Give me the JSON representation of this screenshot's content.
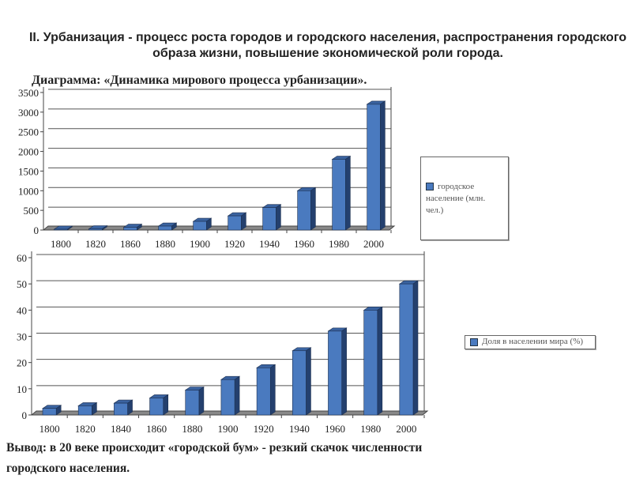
{
  "header": {
    "title": "II. Урбанизация - процесс роста городов и городского населения, распространения городского образа жизни, повышение экономической роли города.",
    "subtitle": "Диаграмма: «Динамика мирового процесса урбанизации»."
  },
  "conclusion": {
    "line1": "Вывод: в 20 веке происходит «городской бум» - резкий скачок численности",
    "line2": "городского населения."
  },
  "chart_data": [
    {
      "type": "bar",
      "title": "",
      "categories": [
        "1800",
        "1820",
        "1860",
        "1880",
        "1900",
        "1920",
        "1940",
        "1960",
        "1980",
        "2000"
      ],
      "series": [
        {
          "name": "городское население (млн. чел.)",
          "values": [
            20,
            30,
            70,
            100,
            220,
            360,
            570,
            1000,
            1800,
            3200
          ]
        }
      ],
      "yticks": [
        "0",
        "500",
        "1000",
        "1500",
        "2000",
        "2500",
        "3000",
        "3500"
      ],
      "ylim": [
        0,
        3500
      ],
      "legend": "right",
      "color": "#4a7abf"
    },
    {
      "type": "bar",
      "title": "",
      "categories": [
        "1800",
        "1820",
        "1840",
        "1860",
        "1880",
        "1900",
        "1920",
        "1940",
        "1960",
        "1980",
        "2000"
      ],
      "series": [
        {
          "name": "Доля в населении мира (%)",
          "values": [
            2.5,
            3.5,
            4.5,
            6.5,
            9.5,
            13.5,
            18,
            24.5,
            32,
            40,
            50
          ]
        }
      ],
      "yticks": [
        "0",
        "10",
        "20",
        "30",
        "40",
        "50",
        "60"
      ],
      "ylim": [
        0,
        60
      ],
      "legend": "right",
      "color": "#4a7abf"
    }
  ]
}
